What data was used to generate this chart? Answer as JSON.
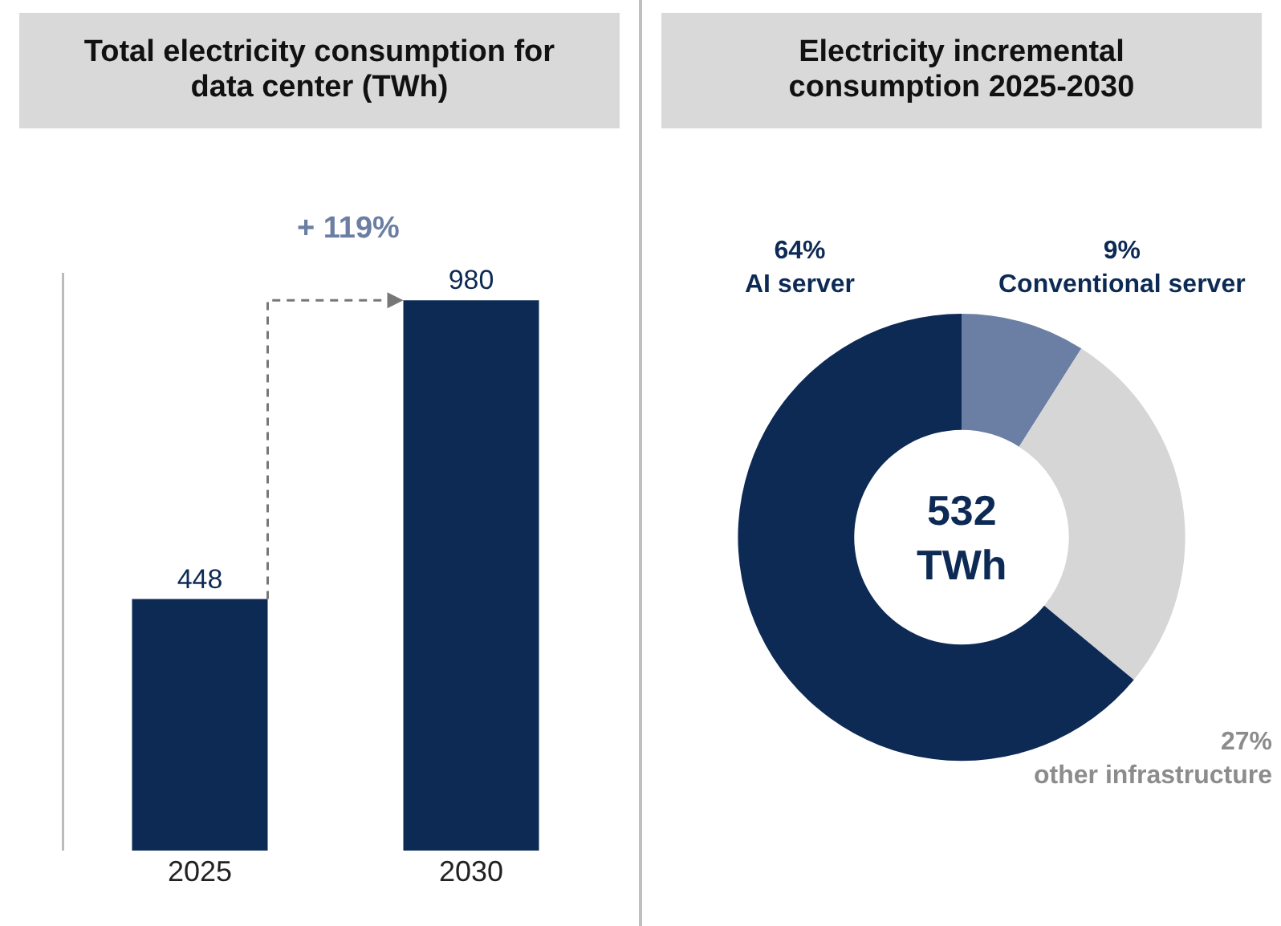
{
  "chart_data": [
    {
      "type": "bar",
      "title": "Total electricity consumption for data center (TWh)",
      "categories": [
        "2025",
        "2030"
      ],
      "values": [
        448,
        980
      ],
      "color": "#0d2a55",
      "data_labels": true,
      "tick_labels": "x",
      "grid": false,
      "annotations": [
        "+ 119%"
      ]
    },
    {
      "type": "donut",
      "title": "Electricity incremental consumption 2025-2030",
      "categories": [
        "Conventional server",
        "other infrastructure",
        "AI server"
      ],
      "values": [
        9,
        27,
        64
      ],
      "value_labels": [
        "9%",
        "27%",
        "64%"
      ],
      "colors": [
        "#6a7fa3",
        "#d6d6d6",
        "#0d2a55"
      ],
      "annotations": [
        "532 TWh"
      ]
    }
  ]
}
